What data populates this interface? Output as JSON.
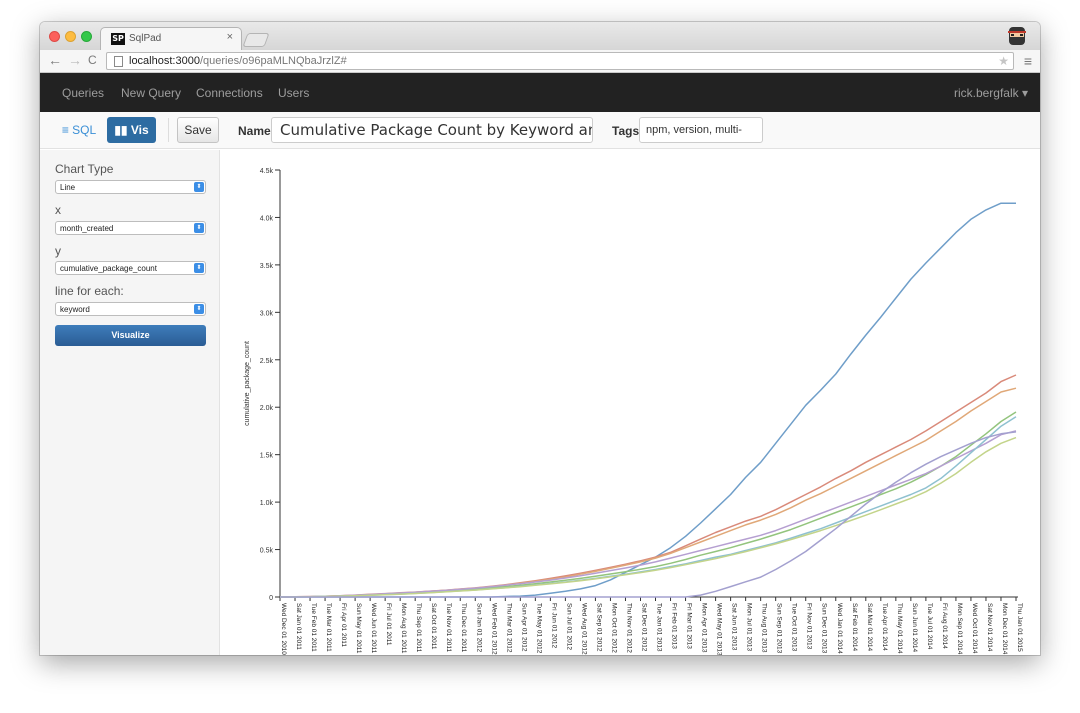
{
  "browser": {
    "tab_icon_text": "SP",
    "tab_title": "SqlPad",
    "tab_close": "×",
    "url_host": "localhost:3000",
    "url_path": "/queries/o96paMLNQbaJrzlZ#",
    "back_glyph": "←",
    "forward_glyph": "→",
    "reload_glyph": "C",
    "star_glyph": "★",
    "menu_glyph": "≡"
  },
  "navbar": {
    "items": [
      {
        "label": "Queries"
      },
      {
        "label": "New Query"
      },
      {
        "label": "Connections"
      },
      {
        "label": "Users"
      }
    ],
    "user": "rick.bergfalk ▾"
  },
  "toolbar": {
    "sql_label": "≡ SQL",
    "vis_label": "Vis",
    "save_label": "Save",
    "name_label": "Name",
    "name_value": "Cumulative Package Count by Keyword and Month",
    "tags_label": "Tags",
    "tags_value": "npm, version, multi-"
  },
  "sidebar": {
    "chart_type_label": "Chart Type",
    "chart_type_value": "Line",
    "x_label": "x",
    "x_value": "month_created",
    "y_label": "y",
    "y_value": "cumulative_package_count",
    "split_label": "line for each:",
    "split_value": "keyword",
    "visualize_label": "Visualize",
    "select_arrow": "⬍"
  },
  "colors": {
    "navbar_bg": "#222222",
    "vis_button": "#2d6ca2",
    "visualize_button": "#2a5c94",
    "axis": "#333333"
  },
  "chart_data": {
    "type": "line",
    "title": "",
    "xlabel": "",
    "ylabel": "cumulative_package_count",
    "ylim": [
      0,
      4500
    ],
    "yticks": [
      0,
      500,
      1000,
      1500,
      2000,
      2500,
      3000,
      3500,
      4000,
      4500
    ],
    "ytick_labels": [
      "0",
      "0.5k",
      "1.0k",
      "1.5k",
      "2.0k",
      "2.5k",
      "3.0k",
      "3.5k",
      "4.0k",
      "4.5k"
    ],
    "grid": false,
    "legend": "none",
    "x": [
      "Wed Dec 01 2010",
      "Sat Jan 01 2011",
      "Tue Feb 01 2011",
      "Tue Mar 01 2011",
      "Fri Apr 01 2011",
      "Sun May 01 2011",
      "Wed Jun 01 2011",
      "Fri Jul 01 2011",
      "Mon Aug 01 2011",
      "Thu Sep 01 2011",
      "Sat Oct 01 2011",
      "Tue Nov 01 2011",
      "Thu Dec 01 2011",
      "Sun Jan 01 2012",
      "Wed Feb 01 2012",
      "Thu Mar 01 2012",
      "Sun Apr 01 2012",
      "Tue May 01 2012",
      "Fri Jun 01 2012",
      "Sun Jul 01 2012",
      "Wed Aug 01 2012",
      "Sat Sep 01 2012",
      "Mon Oct 01 2012",
      "Thu Nov 01 2012",
      "Sat Dec 01 2012",
      "Tue Jan 01 2013",
      "Fri Feb 01 2013",
      "Fri Mar 01 2013",
      "Mon Apr 01 2013",
      "Wed May 01 2013",
      "Sat Jun 01 2013",
      "Mon Jul 01 2013",
      "Thu Aug 01 2013",
      "Sun Sep 01 2013",
      "Tue Oct 01 2013",
      "Fri Nov 01 2013",
      "Sun Dec 01 2013",
      "Wed Jan 01 2014",
      "Sat Feb 01 2014",
      "Sat Mar 01 2014",
      "Tue Apr 01 2014",
      "Thu May 01 2014",
      "Sun Jun 01 2014",
      "Tue Jul 01 2014",
      "Fri Aug 01 2014",
      "Mon Sep 01 2014",
      "Wed Oct 01 2014",
      "Sat Nov 01 2014",
      "Mon Dec 01 2014",
      "Thu Jan 01 2015"
    ],
    "series": [
      {
        "color": "#6f9ec9",
        "values": [
          0,
          0,
          0,
          0,
          0,
          0,
          0,
          0,
          0,
          0,
          0,
          0,
          0,
          0,
          0,
          5,
          10,
          20,
          40,
          60,
          85,
          120,
          180,
          260,
          340,
          420,
          520,
          640,
          780,
          930,
          1080,
          1260,
          1420,
          1620,
          1820,
          2020,
          2180,
          2350,
          2560,
          2760,
          2950,
          3150,
          3350,
          3520,
          3680,
          3840,
          3980,
          4080,
          4150,
          4150
        ]
      },
      {
        "color": "#d98a7a",
        "values": [
          0,
          2,
          4,
          8,
          14,
          20,
          28,
          36,
          44,
          52,
          62,
          72,
          84,
          96,
          112,
          130,
          150,
          172,
          196,
          222,
          250,
          280,
          312,
          346,
          382,
          420,
          470,
          540,
          610,
          680,
          740,
          800,
          850,
          920,
          1000,
          1080,
          1160,
          1250,
          1330,
          1420,
          1500,
          1580,
          1660,
          1750,
          1850,
          1950,
          2050,
          2150,
          2270,
          2340
        ]
      },
      {
        "color": "#e0a878",
        "values": [
          0,
          2,
          4,
          7,
          12,
          18,
          25,
          33,
          41,
          50,
          60,
          70,
          82,
          94,
          108,
          125,
          144,
          164,
          186,
          210,
          240,
          270,
          302,
          336,
          370,
          410,
          460,
          520,
          580,
          640,
          700,
          760,
          810,
          870,
          940,
          1020,
          1090,
          1170,
          1250,
          1330,
          1410,
          1490,
          1570,
          1650,
          1750,
          1850,
          1960,
          2060,
          2160,
          2200
        ]
      },
      {
        "color": "#93c47d",
        "values": [
          0,
          1,
          3,
          6,
          10,
          15,
          21,
          28,
          35,
          43,
          52,
          62,
          72,
          84,
          96,
          110,
          124,
          140,
          158,
          176,
          196,
          218,
          242,
          266,
          292,
          320,
          355,
          395,
          440,
          480,
          520,
          565,
          610,
          660,
          710,
          770,
          830,
          890,
          950,
          1010,
          1080,
          1140,
          1210,
          1290,
          1380,
          1480,
          1600,
          1720,
          1850,
          1950
        ]
      },
      {
        "color": "#b59fd1",
        "values": [
          0,
          2,
          4,
          8,
          13,
          19,
          26,
          34,
          42,
          50,
          60,
          70,
          82,
          94,
          108,
          124,
          140,
          158,
          178,
          200,
          224,
          250,
          278,
          306,
          336,
          370,
          410,
          450,
          490,
          530,
          570,
          610,
          650,
          700,
          760,
          820,
          880,
          940,
          1000,
          1060,
          1120,
          1180,
          1240,
          1300,
          1380,
          1460,
          1540,
          1620,
          1710,
          1750
        ]
      },
      {
        "color": "#8fc1d0",
        "values": [
          0,
          1,
          3,
          6,
          10,
          14,
          19,
          25,
          31,
          38,
          46,
          55,
          64,
          74,
          86,
          98,
          112,
          126,
          142,
          158,
          176,
          196,
          218,
          240,
          264,
          290,
          320,
          350,
          385,
          420,
          450,
          490,
          530,
          570,
          620,
          670,
          720,
          780,
          840,
          900,
          960,
          1020,
          1080,
          1150,
          1250,
          1380,
          1520,
          1660,
          1800,
          1900
        ]
      },
      {
        "color": "#c3d48a",
        "values": [
          0,
          1,
          3,
          5,
          9,
          13,
          18,
          24,
          30,
          37,
          45,
          54,
          63,
          73,
          84,
          96,
          109,
          123,
          138,
          154,
          172,
          191,
          212,
          234,
          257,
          282,
          310,
          340,
          372,
          405,
          440,
          478,
          518,
          560,
          605,
          652,
          700,
          752,
          806,
          862,
          920,
          980,
          1040,
          1110,
          1200,
          1300,
          1420,
          1530,
          1620,
          1680
        ]
      },
      {
        "color": "#a3a0cf",
        "values": [
          0,
          0,
          0,
          0,
          0,
          0,
          0,
          0,
          0,
          0,
          0,
          0,
          0,
          0,
          0,
          0,
          0,
          0,
          0,
          0,
          0,
          0,
          0,
          0,
          0,
          0,
          0,
          0,
          20,
          60,
          110,
          160,
          210,
          290,
          380,
          480,
          600,
          720,
          850,
          980,
          1100,
          1210,
          1310,
          1400,
          1480,
          1550,
          1620,
          1680,
          1720,
          1740
        ]
      }
    ]
  }
}
